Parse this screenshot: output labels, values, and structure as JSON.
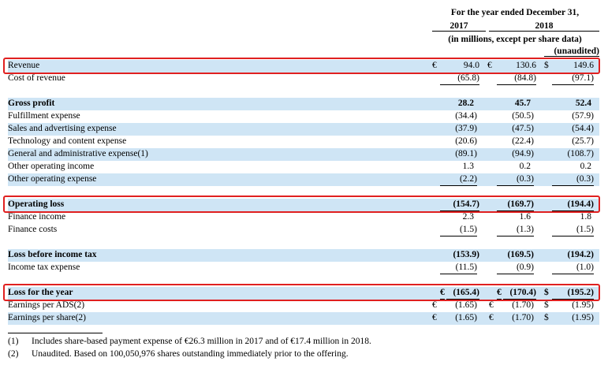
{
  "header": {
    "period": "For the year ended December 31,",
    "year1": "2017",
    "year2": "2018",
    "units": "(in millions, except per share data)",
    "unaudited": "(unaudited)"
  },
  "rows": [
    {
      "label": "Revenue",
      "c1": "€",
      "v1": "94.0",
      "c2": "€",
      "v2": "130.6",
      "c3": "$",
      "v3": "149.6",
      "bold": false
    },
    {
      "label": "Cost of revenue",
      "c1": "",
      "v1": "(65.8)",
      "c2": "",
      "v2": "(84.8)",
      "c3": "",
      "v3": "(97.1)",
      "bold": false
    },
    {
      "label": "Gross profit",
      "v1": "28.2",
      "v2": "45.7",
      "v3": "52.4",
      "bold": true
    },
    {
      "label": "Fulfillment expense",
      "v1": "(34.4)",
      "v2": "(50.5)",
      "v3": "(57.9)",
      "bold": false
    },
    {
      "label": "Sales and advertising expense",
      "v1": "(37.9)",
      "v2": "(47.5)",
      "v3": "(54.4)",
      "bold": false
    },
    {
      "label": "Technology and content expense",
      "v1": "(20.6)",
      "v2": "(22.4)",
      "v3": "(25.7)",
      "bold": false
    },
    {
      "label": "General and administrative expense(1)",
      "v1": "(89.1)",
      "v2": "(94.9)",
      "v3": "(108.7)",
      "bold": false
    },
    {
      "label": "Other operating income",
      "v1": "1.3",
      "v2": "0.2",
      "v3": "0.2",
      "bold": false
    },
    {
      "label": "Other operating expense",
      "v1": "(2.2)",
      "v2": "(0.3)",
      "v3": "(0.3)",
      "bold": false
    },
    {
      "label": "Operating loss",
      "v1": "(154.7)",
      "v2": "(169.7)",
      "v3": "(194.4)",
      "bold": true
    },
    {
      "label": "Finance income",
      "v1": "2.3",
      "v2": "1.6",
      "v3": "1.8",
      "bold": false
    },
    {
      "label": "Finance costs",
      "v1": "(1.5)",
      "v2": "(1.3)",
      "v3": "(1.5)",
      "bold": false
    },
    {
      "label": "Loss before income tax",
      "v1": "(153.9)",
      "v2": "(169.5)",
      "v3": "(194.2)",
      "bold": true
    },
    {
      "label": "Income tax expense",
      "v1": "(11.5)",
      "v2": "(0.9)",
      "v3": "(1.0)",
      "bold": false
    },
    {
      "label": "Loss for the year",
      "c1": "€",
      "v1": "(165.4)",
      "c2": "€",
      "v2": "(170.4)",
      "c3": "$",
      "v3": "(195.2)",
      "bold": true
    },
    {
      "label": "Earnings per ADS(2)",
      "c1": "€",
      "v1": "(1.65)",
      "c2": "€",
      "v2": "(1.70)",
      "c3": "$",
      "v3": "(1.95)",
      "bold": false
    },
    {
      "label": "Earnings per share(2)",
      "c1": "€",
      "v1": "(1.65)",
      "c2": "€",
      "v2": "(1.70)",
      "c3": "$",
      "v3": "(1.95)",
      "bold": false
    }
  ],
  "footnotes": [
    {
      "marker": "(1)",
      "text": "Includes share-based payment expense of €26.3 million in 2017 and of €17.4 million in 2018."
    },
    {
      "marker": "(2)",
      "text": "Unaudited. Based on 100,050,976 shares outstanding immediately prior to the offering."
    }
  ],
  "highlight_color": "#e02020",
  "shade_color": "#cfe5f5"
}
